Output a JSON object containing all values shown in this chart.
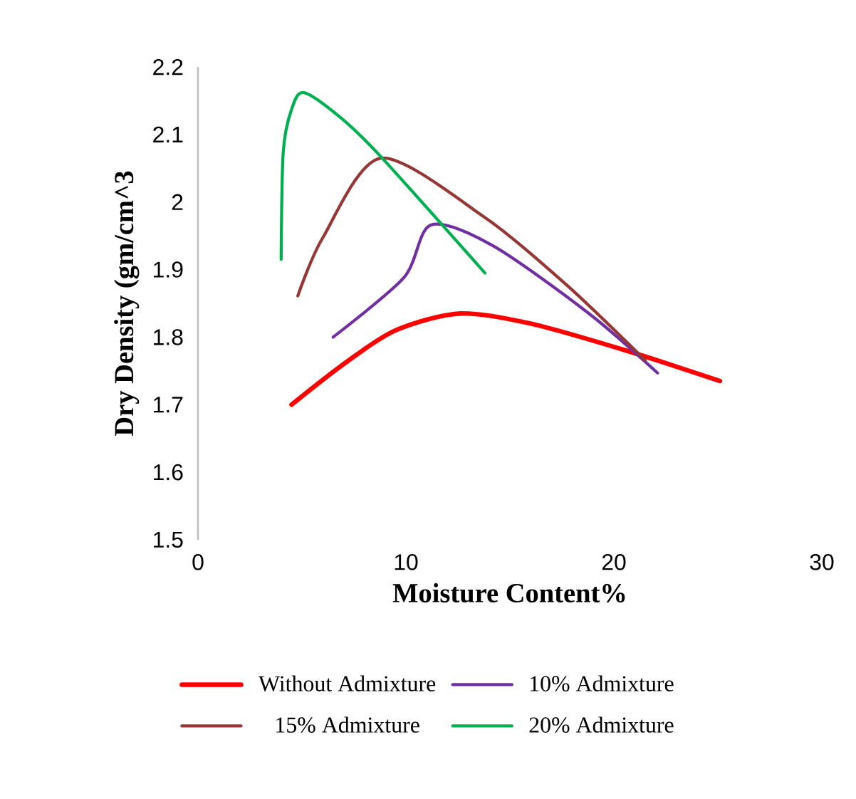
{
  "chart_data": {
    "type": "line",
    "xlabel": "Moisture Content%",
    "ylabel": "Dry Density (gm/cm^3",
    "xlim": [
      0,
      30
    ],
    "xticks": [
      0,
      10,
      20,
      30
    ],
    "ylim": [
      1.5,
      2.2
    ],
    "yticks": [
      1.5,
      1.6,
      1.7,
      1.8,
      1.9,
      2,
      2.1,
      2.2
    ],
    "legend": "bottom",
    "grid": false,
    "marker": "none",
    "line_style": "solid",
    "series": [
      {
        "name": "Without Admixture",
        "color": "#ff0000",
        "x": [
          4.5,
          7,
          9.5,
          12.6,
          16,
          20.6,
          25.1
        ],
        "values": [
          1.7,
          1.76,
          1.81,
          1.835,
          1.82,
          1.78,
          1.735
        ]
      },
      {
        "name": "10% Admixture",
        "color": "#7030a0",
        "x": [
          6.5,
          9.9,
          11.2,
          14.2,
          18.8,
          22.1
        ],
        "values": [
          1.8,
          1.888,
          1.966,
          1.935,
          1.835,
          1.747
        ]
      },
      {
        "name": "15% Admixture",
        "color": "#953735",
        "x": [
          4.8,
          6.0,
          8.8,
          13.8,
          17.7,
          21.5
        ],
        "values": [
          1.861,
          1.947,
          2.065,
          1.977,
          1.878,
          1.766
        ]
      },
      {
        "name": "20% Admixture",
        "color": "#00b050",
        "x": [
          4.0,
          4.1,
          4.5,
          5.1,
          6.9,
          8.8,
          13.8
        ],
        "values": [
          1.915,
          2.074,
          2.137,
          2.162,
          2.124,
          2.067,
          1.895
        ]
      }
    ]
  }
}
